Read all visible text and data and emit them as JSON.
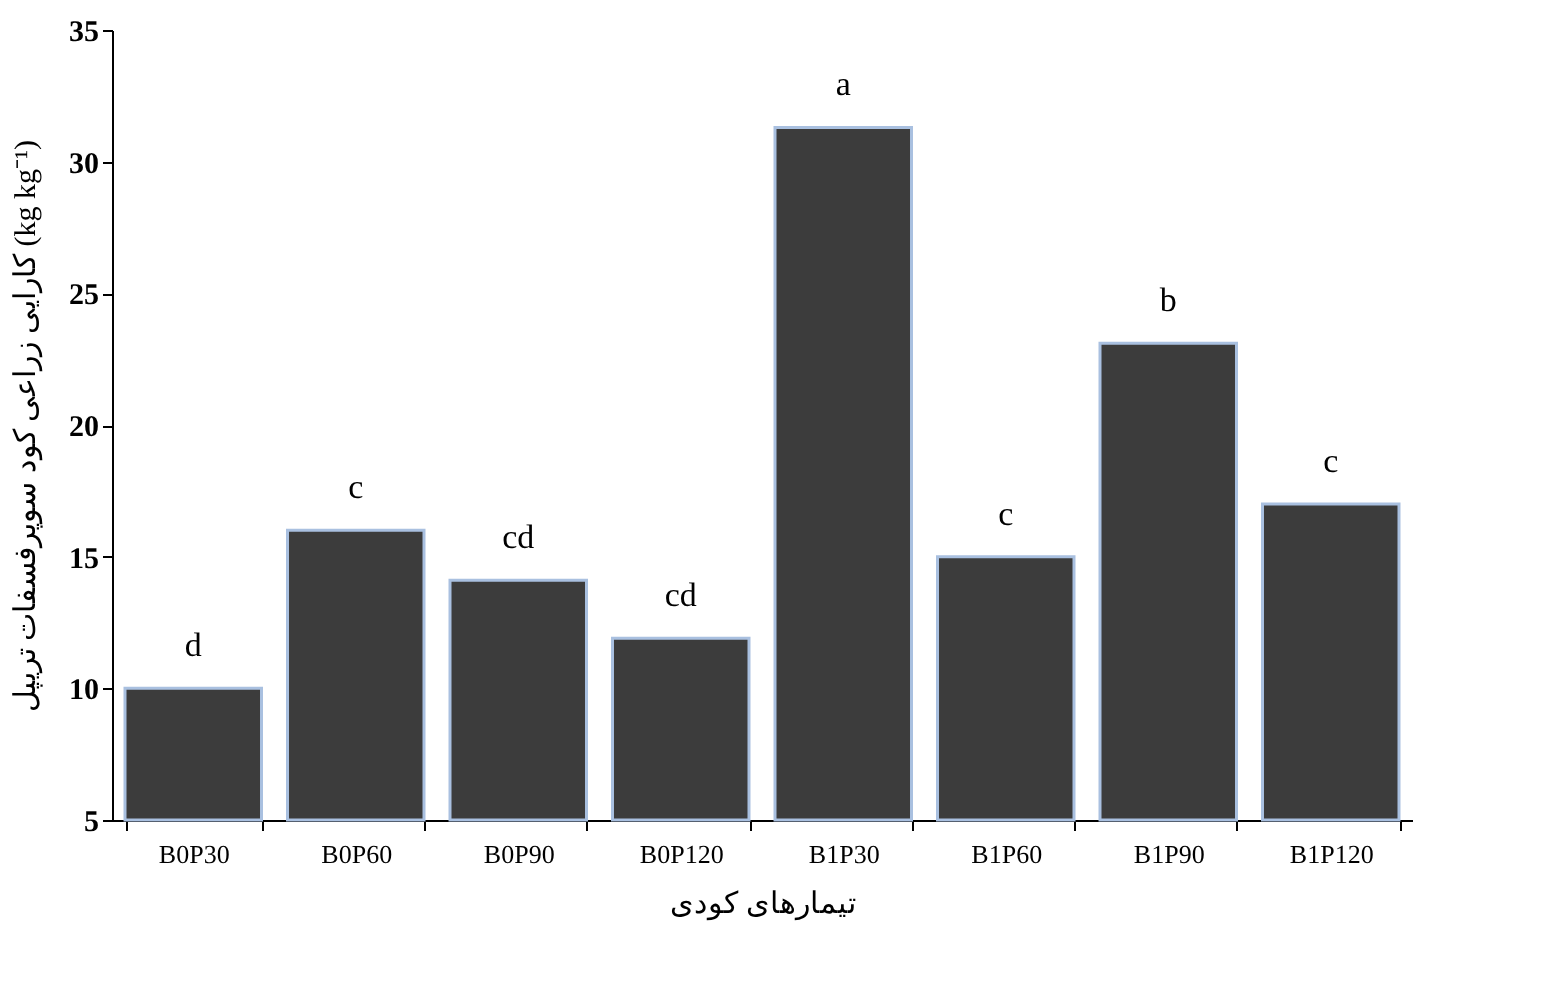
{
  "chart_data": {
    "type": "bar",
    "xlabel": "تیمارهای کودی",
    "ylabel": "کارایی زراعی کود سوپرفسفات تریپل (kg kg⁻¹)",
    "categories": [
      "B0P30",
      "B0P60",
      "B0P90",
      "B0P120",
      "B1P30",
      "B1P60",
      "B1P90",
      "B1P120"
    ],
    "values": [
      10,
      16,
      14.1,
      11.9,
      31.3,
      15,
      23.1,
      17
    ],
    "color": "#3c3c3c",
    "ylim": [
      5,
      35
    ],
    "yticks": [
      5,
      10,
      15,
      20,
      25,
      30,
      35
    ],
    "grid": false,
    "annotations": [
      {
        "text": "d",
        "x": "B0P30",
        "y": 10
      },
      {
        "text": "c",
        "x": "B0P60",
        "y": 16
      },
      {
        "text": "cd",
        "x": "B0P90",
        "y": 14.1
      },
      {
        "text": "cd",
        "x": "B0P120",
        "y": 11.9
      },
      {
        "text": "a",
        "x": "B1P30",
        "y": 31.3
      },
      {
        "text": "c",
        "x": "B1P60",
        "y": 15
      },
      {
        "text": "b",
        "x": "B1P90",
        "y": 23.1
      },
      {
        "text": "c",
        "x": "B1P120",
        "y": 17
      }
    ]
  }
}
